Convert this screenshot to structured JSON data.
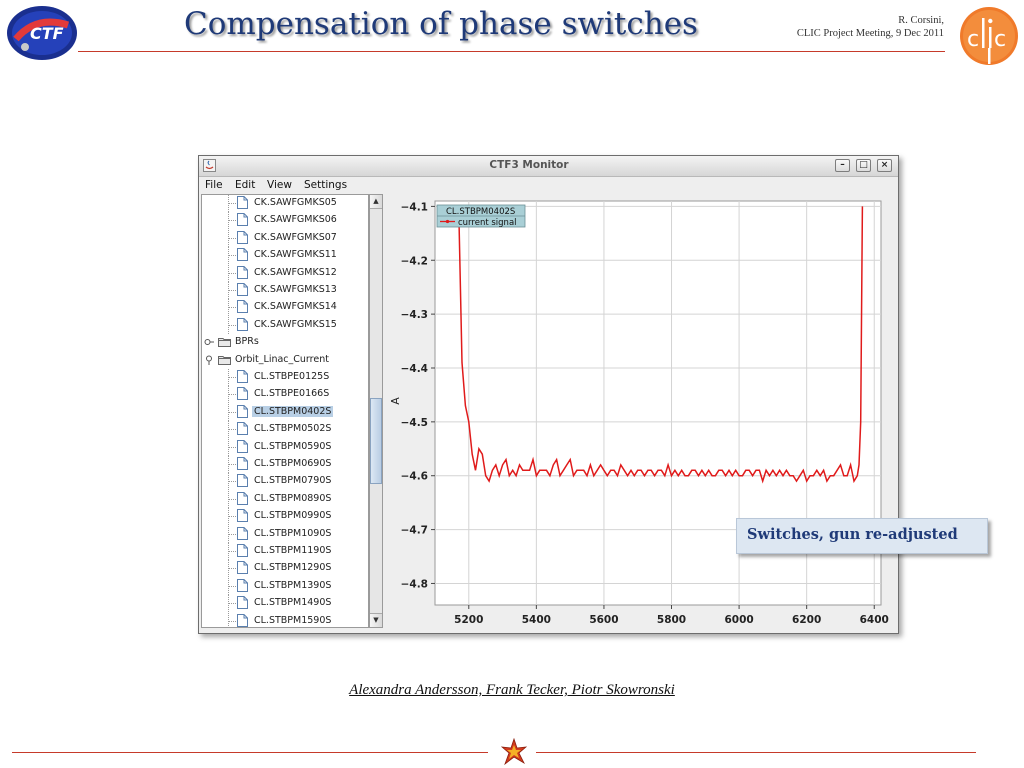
{
  "slide": {
    "title": "Compensation of phase switches",
    "author": "R. Corsini,",
    "event": "CLIC Project Meeting, 9 Dec 2011",
    "credits": "Alexandra Andersson, Frank Tecker, Piotr Skowronski",
    "left_logo": "ctf3-logo",
    "right_logo": "clic-logo",
    "footer_icon": "star-icon",
    "accent_color": "#c63a2a",
    "title_color": "#1f3a78"
  },
  "window": {
    "title": "CTF3 Monitor",
    "menu": [
      "File",
      "Edit",
      "View",
      "Settings"
    ],
    "buttons": {
      "minimize": "minimize-icon",
      "maximize": "maximize-icon",
      "close": "close-icon"
    }
  },
  "tree": {
    "items": [
      {
        "label": "CK.SAWFGMKS05",
        "kind": "file",
        "level": 2
      },
      {
        "label": "CK.SAWFGMKS06",
        "kind": "file",
        "level": 2
      },
      {
        "label": "CK.SAWFGMKS07",
        "kind": "file",
        "level": 2
      },
      {
        "label": "CK.SAWFGMKS11",
        "kind": "file",
        "level": 2
      },
      {
        "label": "CK.SAWFGMKS12",
        "kind": "file",
        "level": 2
      },
      {
        "label": "CK.SAWFGMKS13",
        "kind": "file",
        "level": 2
      },
      {
        "label": "CK.SAWFGMKS14",
        "kind": "file",
        "level": 2
      },
      {
        "label": "CK.SAWFGMKS15",
        "kind": "file",
        "level": 2
      },
      {
        "label": "BPRs",
        "kind": "folder",
        "level": 1,
        "expanded": false
      },
      {
        "label": "Orbit_Linac_Current",
        "kind": "folder",
        "level": 1,
        "expanded": true
      },
      {
        "label": "CL.STBPE0125S",
        "kind": "file",
        "level": 2
      },
      {
        "label": "CL.STBPE0166S",
        "kind": "file",
        "level": 2
      },
      {
        "label": "CL.STBPM0402S",
        "kind": "file",
        "level": 2,
        "selected": true
      },
      {
        "label": "CL.STBPM0502S",
        "kind": "file",
        "level": 2
      },
      {
        "label": "CL.STBPM0590S",
        "kind": "file",
        "level": 2
      },
      {
        "label": "CL.STBPM0690S",
        "kind": "file",
        "level": 2
      },
      {
        "label": "CL.STBPM0790S",
        "kind": "file",
        "level": 2
      },
      {
        "label": "CL.STBPM0890S",
        "kind": "file",
        "level": 2
      },
      {
        "label": "CL.STBPM0990S",
        "kind": "file",
        "level": 2
      },
      {
        "label": "CL.STBPM1090S",
        "kind": "file",
        "level": 2
      },
      {
        "label": "CL.STBPM1190S",
        "kind": "file",
        "level": 2
      },
      {
        "label": "CL.STBPM1290S",
        "kind": "file",
        "level": 2
      },
      {
        "label": "CL.STBPM1390S",
        "kind": "file",
        "level": 2
      },
      {
        "label": "CL.STBPM1490S",
        "kind": "file",
        "level": 2
      },
      {
        "label": "CL.STBPM1590S",
        "kind": "file",
        "level": 2
      }
    ]
  },
  "chart_data": {
    "type": "line",
    "title": "",
    "xlabel": "",
    "ylabel": "A",
    "xlim": [
      5100,
      6420
    ],
    "ylim": [
      -4.84,
      -4.09
    ],
    "x_ticks": [
      5200,
      5400,
      5600,
      5800,
      6000,
      6200,
      6400
    ],
    "y_ticks": [
      -4.1,
      -4.2,
      -4.3,
      -4.4,
      -4.5,
      -4.6,
      -4.7,
      -4.8
    ],
    "grid": true,
    "legend_title": "CL.STBPM0402S",
    "legend_position": "top-left",
    "series": [
      {
        "name": "current signal",
        "color": "#e01b1b",
        "x": [
          5170,
          5180,
          5190,
          5200,
          5210,
          5220,
          5230,
          5240,
          5250,
          5260,
          5270,
          5280,
          5290,
          5300,
          5310,
          5320,
          5330,
          5340,
          5350,
          5360,
          5370,
          5380,
          5390,
          5400,
          5410,
          5420,
          5430,
          5440,
          5450,
          5460,
          5470,
          5480,
          5490,
          5500,
          5510,
          5520,
          5530,
          5540,
          5550,
          5560,
          5570,
          5580,
          5590,
          5600,
          5610,
          5620,
          5630,
          5640,
          5650,
          5660,
          5670,
          5680,
          5690,
          5700,
          5710,
          5720,
          5730,
          5740,
          5750,
          5760,
          5770,
          5780,
          5790,
          5800,
          5810,
          5820,
          5830,
          5840,
          5850,
          5860,
          5870,
          5880,
          5890,
          5900,
          5910,
          5920,
          5930,
          5940,
          5950,
          5960,
          5970,
          5980,
          5990,
          6000,
          6010,
          6020,
          6030,
          6040,
          6050,
          6060,
          6070,
          6080,
          6090,
          6100,
          6110,
          6120,
          6130,
          6140,
          6150,
          6160,
          6170,
          6180,
          6190,
          6200,
          6210,
          6220,
          6230,
          6240,
          6250,
          6260,
          6270,
          6280,
          6290,
          6300,
          6310,
          6320,
          6330,
          6340,
          6350,
          6355,
          6360,
          6365
        ],
        "y": [
          -4.1,
          -4.39,
          -4.47,
          -4.5,
          -4.56,
          -4.59,
          -4.55,
          -4.56,
          -4.6,
          -4.61,
          -4.59,
          -4.58,
          -4.6,
          -4.58,
          -4.57,
          -4.6,
          -4.59,
          -4.6,
          -4.58,
          -4.59,
          -4.59,
          -4.59,
          -4.57,
          -4.6,
          -4.59,
          -4.59,
          -4.59,
          -4.6,
          -4.58,
          -4.57,
          -4.6,
          -4.59,
          -4.58,
          -4.57,
          -4.6,
          -4.59,
          -4.59,
          -4.59,
          -4.6,
          -4.58,
          -4.6,
          -4.59,
          -4.58,
          -4.59,
          -4.6,
          -4.59,
          -4.59,
          -4.6,
          -4.58,
          -4.59,
          -4.6,
          -4.59,
          -4.6,
          -4.59,
          -4.59,
          -4.6,
          -4.59,
          -4.59,
          -4.6,
          -4.59,
          -4.59,
          -4.6,
          -4.58,
          -4.6,
          -4.59,
          -4.6,
          -4.59,
          -4.6,
          -4.6,
          -4.59,
          -4.59,
          -4.6,
          -4.59,
          -4.6,
          -4.59,
          -4.6,
          -4.6,
          -4.59,
          -4.59,
          -4.6,
          -4.59,
          -4.6,
          -4.59,
          -4.6,
          -4.6,
          -4.59,
          -4.59,
          -4.6,
          -4.59,
          -4.59,
          -4.61,
          -4.59,
          -4.6,
          -4.59,
          -4.6,
          -4.59,
          -4.6,
          -4.59,
          -4.6,
          -4.6,
          -4.61,
          -4.6,
          -4.59,
          -4.61,
          -4.6,
          -4.6,
          -4.59,
          -4.6,
          -4.59,
          -4.61,
          -4.6,
          -4.6,
          -4.59,
          -4.58,
          -4.6,
          -4.6,
          -4.58,
          -4.61,
          -4.6,
          -4.58,
          -4.5,
          -4.1
        ]
      }
    ],
    "annotation": "Switches, gun re-adjusted"
  }
}
